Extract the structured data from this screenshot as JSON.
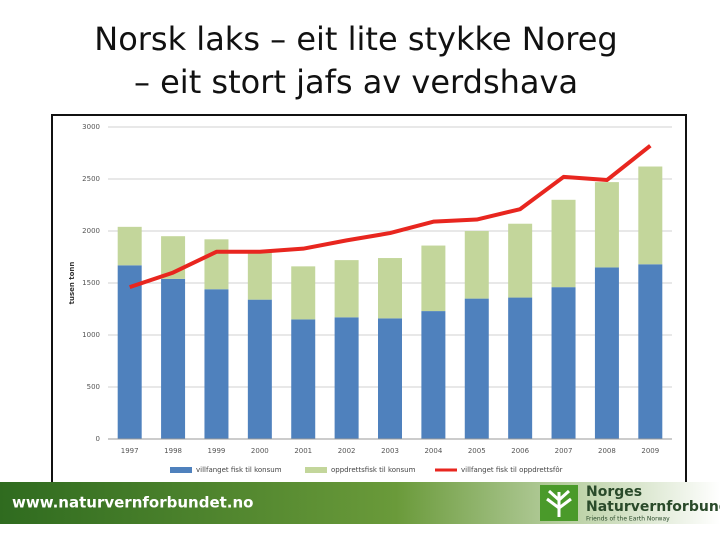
{
  "slide": {
    "title_lines": [
      "Norsk laks – eit lite stykke Noreg",
      "– eit stort jafs av verdshava"
    ]
  },
  "chart_data": {
    "type": "bar",
    "stacked": true,
    "y_label": "tusen tonn",
    "categories": [
      "1997",
      "1998",
      "1999",
      "2000",
      "2001",
      "2002",
      "2003",
      "2004",
      "2005",
      "2006",
      "2007",
      "2008",
      "2009"
    ],
    "series": [
      {
        "name": "villfanget fisk til konsum",
        "type": "bar",
        "color": "#4f81bd",
        "values": [
          1670,
          1540,
          1440,
          1340,
          1150,
          1170,
          1160,
          1230,
          1350,
          1360,
          1460,
          1650,
          1680
        ]
      },
      {
        "name": "oppdrettsfisk til konsum",
        "type": "bar",
        "color": "#c3d69b",
        "values": [
          370,
          410,
          480,
          470,
          510,
          550,
          580,
          630,
          650,
          710,
          840,
          820,
          940
        ]
      },
      {
        "name": "villfanget fisk til oppdrettsfôr",
        "type": "line",
        "color": "#e8261f",
        "values": [
          1460,
          1600,
          1800,
          1800,
          1830,
          1910,
          1980,
          2090,
          2110,
          2210,
          2520,
          2490,
          2820
        ]
      }
    ],
    "ylim": [
      0,
      3000
    ],
    "yticks": [
      0,
      500,
      1000,
      1500,
      2000,
      2500,
      3000
    ],
    "grid": true
  },
  "footer": {
    "url": "www.naturvernforbundet.no",
    "logo_lines": [
      "Norges",
      "Naturvernforbundet",
      "Friends of the Earth Norway"
    ]
  }
}
